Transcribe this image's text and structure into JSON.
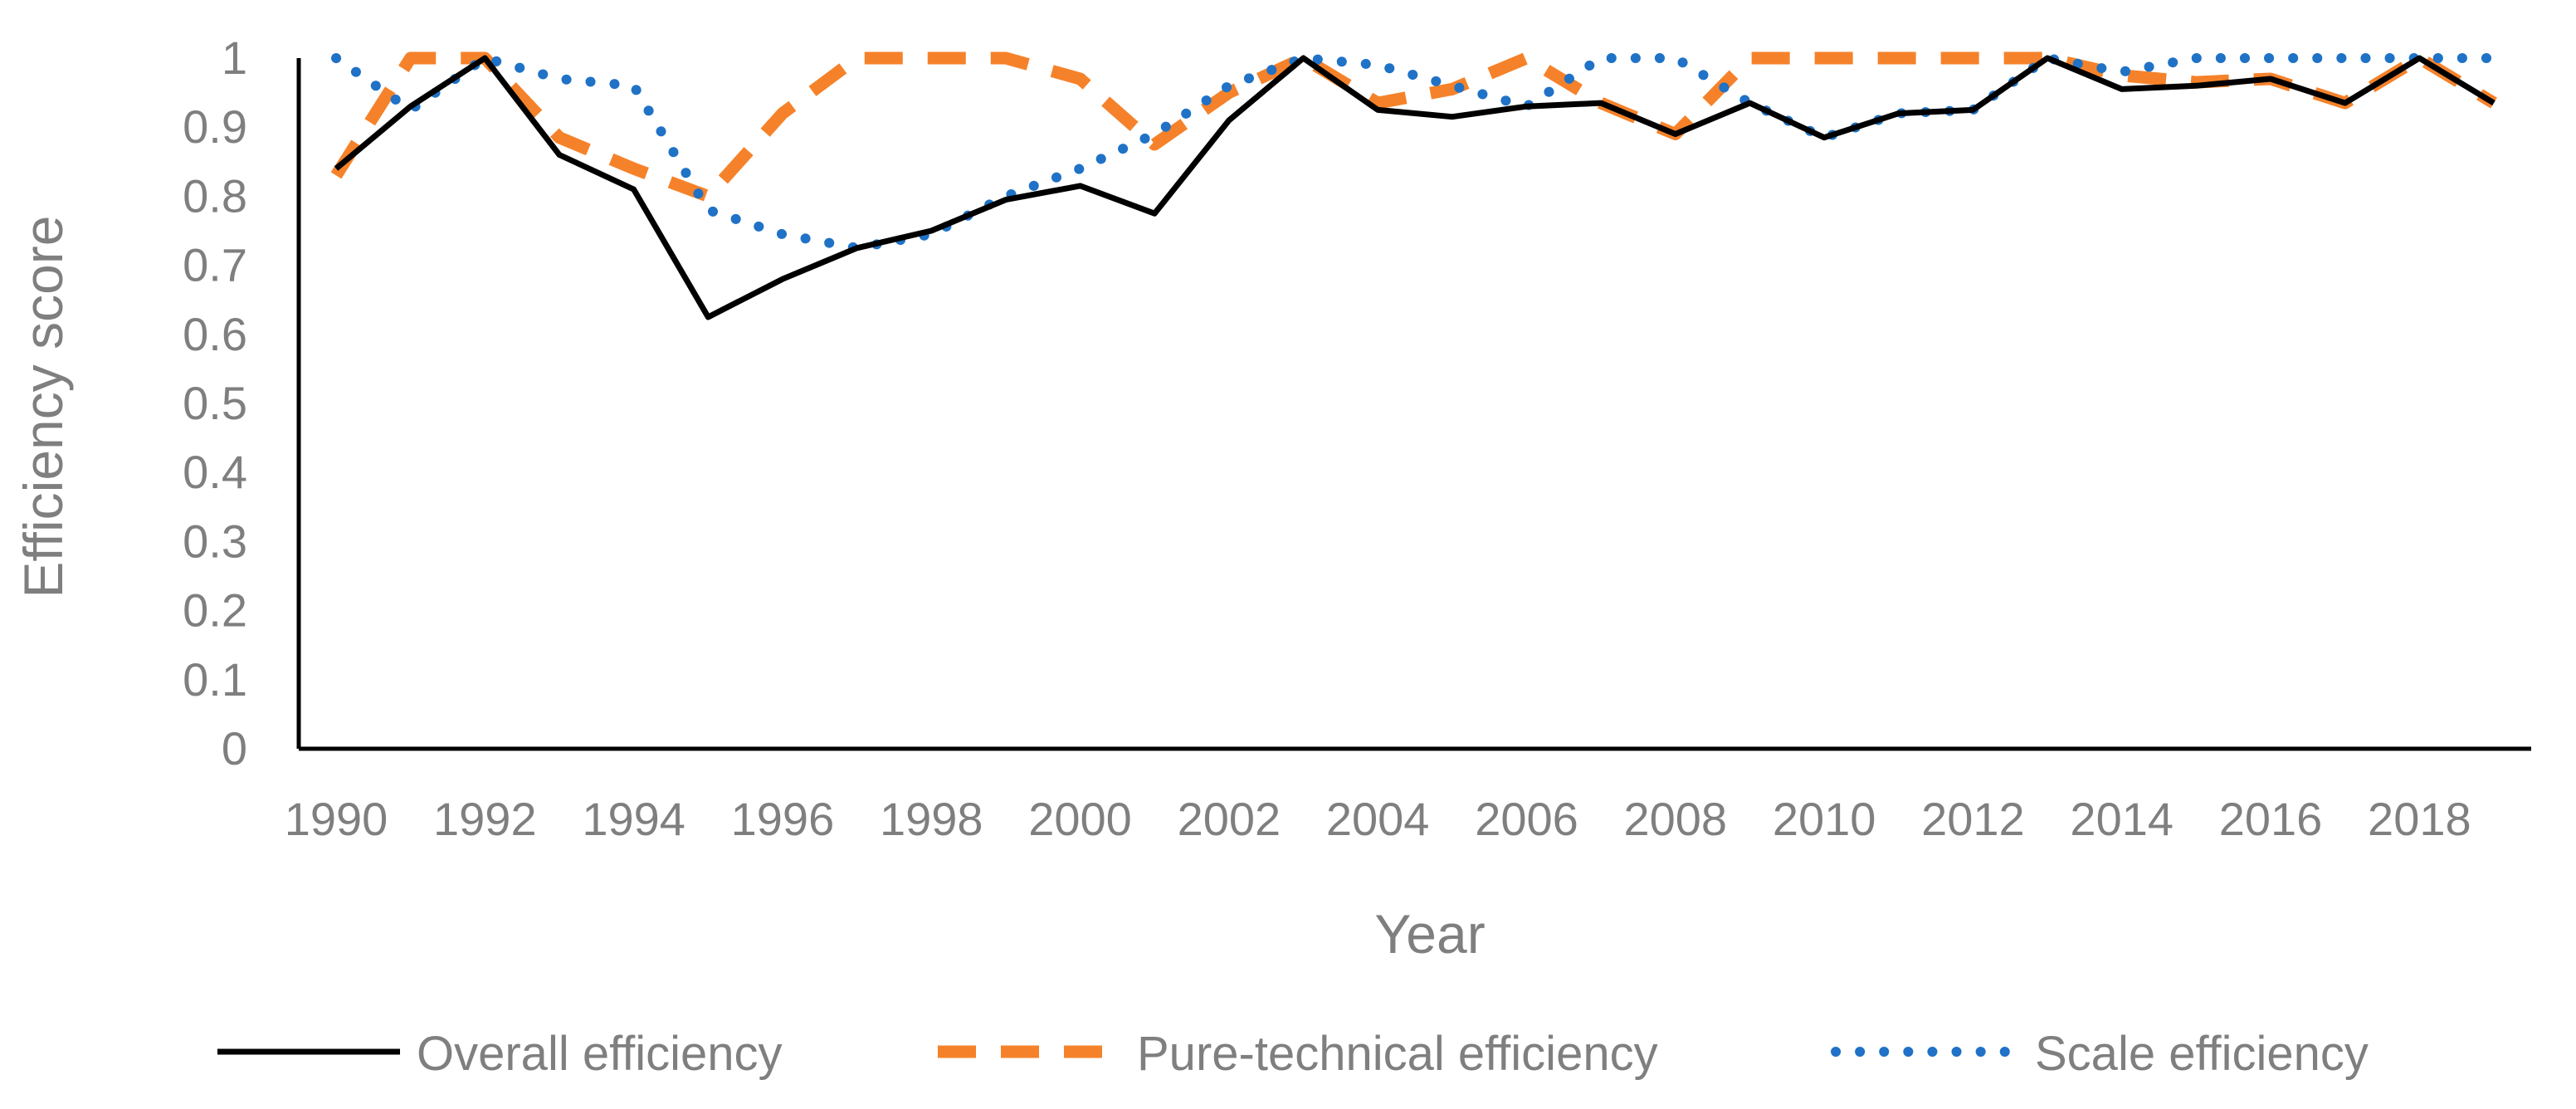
{
  "chart_data": {
    "type": "line",
    "title": "",
    "xlabel": "Year",
    "ylabel": "Efficiency score",
    "x": [
      1990,
      1991,
      1992,
      1993,
      1994,
      1995,
      1996,
      1997,
      1998,
      1999,
      2000,
      2001,
      2002,
      2003,
      2004,
      2005,
      2006,
      2007,
      2008,
      2009,
      2010,
      2011,
      2012,
      2013,
      2014,
      2015,
      2016,
      2017,
      2018,
      2019
    ],
    "xticks": [
      "1990",
      "1992",
      "1994",
      "1996",
      "1998",
      "2000",
      "2002",
      "2004",
      "2006",
      "2008",
      "2010",
      "2012",
      "2014",
      "2016",
      "2018"
    ],
    "yticks": [
      "0",
      "0.1",
      "0.2",
      "0.3",
      "0.4",
      "0.5",
      "0.6",
      "0.7",
      "0.8",
      "0.9",
      "1"
    ],
    "ylim": [
      0,
      1
    ],
    "grid": false,
    "legend_position": "bottom",
    "series": [
      {
        "name": "Overall efficiency",
        "color": "#000000",
        "style": "solid",
        "values": [
          0.84,
          0.93,
          1.0,
          0.86,
          0.81,
          0.625,
          0.68,
          0.725,
          0.75,
          0.795,
          0.815,
          0.775,
          0.91,
          1.0,
          0.925,
          0.915,
          0.93,
          0.935,
          0.89,
          0.935,
          0.885,
          0.92,
          0.925,
          1.0,
          0.955,
          0.96,
          0.97,
          0.935,
          1.0,
          0.935
        ]
      },
      {
        "name": "Pure-technical efficiency",
        "color": "#f5822a",
        "style": "dashed",
        "values": [
          0.83,
          1.0,
          1.0,
          0.885,
          0.84,
          0.8,
          0.92,
          1.0,
          1.0,
          1.0,
          0.97,
          0.875,
          0.95,
          1.0,
          0.935,
          0.955,
          1.0,
          0.935,
          0.89,
          1.0,
          1.0,
          1.0,
          1.0,
          1.0,
          0.975,
          0.965,
          0.97,
          0.935,
          1.0,
          0.935
        ]
      },
      {
        "name": "Scale efficiency",
        "color": "#1f72c6",
        "style": "dotted",
        "values": [
          1.0,
          0.925,
          1.0,
          0.97,
          0.96,
          0.78,
          0.745,
          0.725,
          0.745,
          0.8,
          0.84,
          0.89,
          0.96,
          1.0,
          0.99,
          0.96,
          0.93,
          1.0,
          1.0,
          0.935,
          0.885,
          0.92,
          0.925,
          1.0,
          0.98,
          1.0,
          1.0,
          1.0,
          1.0,
          1.0
        ]
      }
    ]
  }
}
